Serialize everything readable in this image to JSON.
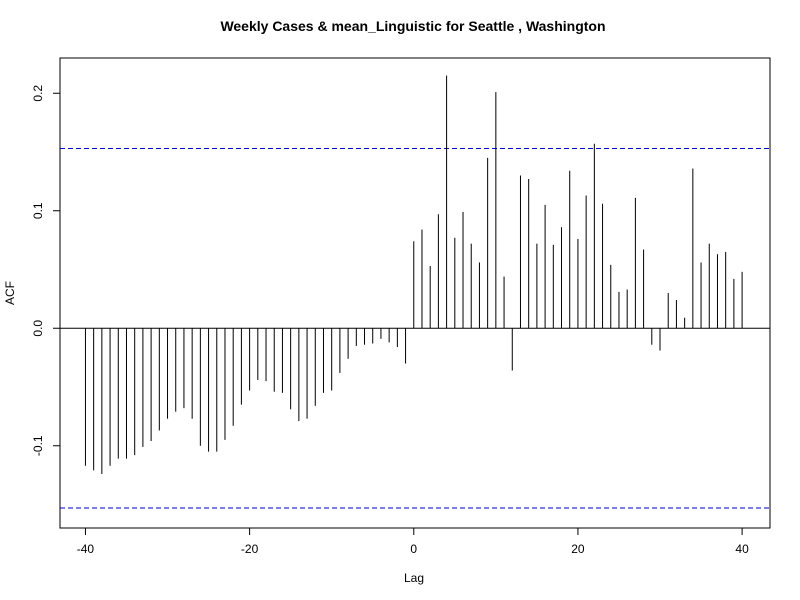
{
  "chart_data": {
    "type": "acf",
    "title": "Weekly Cases & mean_Linguistic for Seattle , Washington",
    "xlabel": "Lag",
    "ylabel": "ACF",
    "x": [
      -40,
      -39,
      -38,
      -37,
      -36,
      -35,
      -34,
      -33,
      -32,
      -31,
      -30,
      -29,
      -28,
      -27,
      -26,
      -25,
      -24,
      -23,
      -22,
      -21,
      -20,
      -19,
      -18,
      -17,
      -16,
      -15,
      -14,
      -13,
      -12,
      -11,
      -10,
      -9,
      -8,
      -7,
      -6,
      -5,
      -4,
      -3,
      -2,
      -1,
      0,
      1,
      2,
      3,
      4,
      5,
      6,
      7,
      8,
      9,
      10,
      11,
      12,
      13,
      14,
      15,
      16,
      17,
      18,
      19,
      20,
      21,
      22,
      23,
      24,
      25,
      26,
      27,
      28,
      29,
      30,
      31,
      32,
      33,
      34,
      35,
      36,
      37,
      38,
      39,
      40
    ],
    "values": [
      -0.117,
      -0.121,
      -0.124,
      -0.117,
      -0.111,
      -0.111,
      -0.108,
      -0.101,
      -0.096,
      -0.087,
      -0.077,
      -0.071,
      -0.068,
      -0.077,
      -0.1,
      -0.105,
      -0.105,
      -0.095,
      -0.083,
      -0.065,
      -0.053,
      -0.044,
      -0.045,
      -0.054,
      -0.055,
      -0.069,
      -0.079,
      -0.077,
      -0.066,
      -0.055,
      -0.053,
      -0.038,
      -0.026,
      -0.015,
      -0.014,
      -0.013,
      -0.009,
      -0.012,
      -0.016,
      -0.03,
      0.074,
      0.084,
      0.053,
      0.097,
      0.215,
      0.077,
      0.099,
      0.072,
      0.056,
      0.145,
      0.201,
      0.044,
      -0.036,
      0.13,
      0.127,
      0.072,
      0.105,
      0.071,
      0.086,
      0.134,
      0.076,
      0.113,
      0.157,
      0.106,
      0.054,
      0.031,
      0.033,
      0.111,
      0.067,
      -0.014,
      -0.019,
      0.03,
      0.024,
      0.009,
      0.136,
      0.056,
      0.072,
      0.063,
      0.065,
      0.042,
      0.048
    ],
    "color": "#000000",
    "significance": [
      0.153,
      -0.153
    ],
    "significance_color": "#0000cc",
    "xlim": [
      -43.1,
      43.4
    ],
    "ylim": [
      -0.17,
      0.23
    ],
    "xticks": [
      -40,
      -20,
      0,
      20,
      40
    ],
    "yticks": [
      -0.1,
      {
        "value": 0,
        "label": "0.0"
      },
      0.1,
      0.2
    ]
  }
}
